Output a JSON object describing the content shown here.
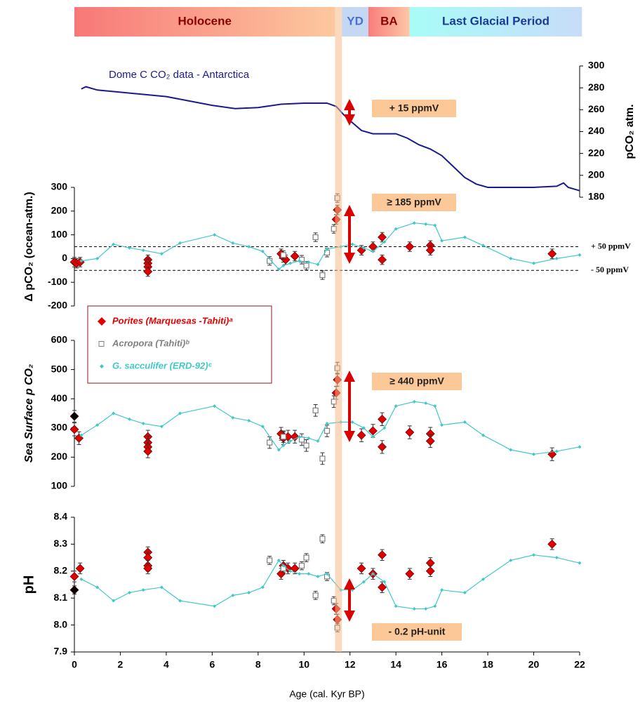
{
  "periods": [
    {
      "label": "Holocene",
      "start": 0,
      "end": 11.35,
      "colors": [
        "#f87878",
        "#fcc89e"
      ],
      "text_color": "#8b0000"
    },
    {
      "label": "YD",
      "start": 11.65,
      "end": 12.8,
      "colors": [
        "#c4d8f4",
        "#c4d8f4"
      ],
      "text_color": "#4a6fd0"
    },
    {
      "label": "BA",
      "start": 12.8,
      "end": 14.6,
      "colors": [
        "#f87c7c",
        "#fcc8a8"
      ],
      "text_color": "#8b0000"
    },
    {
      "label": "Last Glacial Period",
      "start": 14.6,
      "end": 22.1,
      "colors": [
        "#a8fcf8",
        "#c8dcf8"
      ],
      "text_color": "#1a3a9a"
    }
  ],
  "highlight": {
    "start": 11.35,
    "end": 11.65,
    "color": "#f5b98a"
  },
  "chart_data": [
    {
      "type": "line",
      "title": "Dome C CO₂ data - Antarctica",
      "ylabel": "pCO₂ atm.",
      "yaxis_side": "right",
      "xlim": [
        0,
        22
      ],
      "ylim": [
        180,
        300
      ],
      "yticks": [
        180,
        200,
        220,
        240,
        260,
        280,
        300
      ],
      "annotation": "+ 15 ppmV",
      "series": [
        {
          "color": "#1a1a8c",
          "marker": "line",
          "x": [
            0.3,
            0.5,
            1,
            2,
            3,
            4,
            5,
            6,
            7,
            8,
            9,
            10,
            11,
            11.4,
            11.7,
            12,
            12.5,
            13,
            14,
            14.5,
            15,
            15.5,
            16,
            16.5,
            17,
            17.5,
            18,
            19,
            20,
            21,
            21.3,
            21.5,
            22
          ],
          "values": [
            279,
            281,
            278,
            276,
            274,
            272,
            268,
            264,
            261,
            262,
            265,
            266,
            266,
            263,
            256,
            250,
            241,
            238,
            238,
            234,
            228,
            224,
            218,
            208,
            198,
            192,
            189,
            189,
            189,
            190,
            193,
            189,
            186
          ]
        }
      ]
    },
    {
      "type": "scatter",
      "ylabel": "Δ pCO₂ (ocean-atm.)",
      "yaxis_side": "left",
      "xlim": [
        0,
        22
      ],
      "ylim": [
        -200,
        300
      ],
      "yticks": [
        -200,
        -100,
        0,
        100,
        200,
        300
      ],
      "annotation": "≥ 185 ppmV",
      "reference_lines": [
        {
          "value": 50,
          "label": "+ 50 ppmV"
        },
        {
          "value": -50,
          "label": "- 50 ppmV"
        }
      ],
      "series": [
        {
          "color": "#e00000",
          "marker": "diamond",
          "x": [
            0,
            0.1,
            0.25,
            3.2,
            3.2,
            3.2,
            3.2,
            9.0,
            9.1,
            9.2,
            9.6,
            11.4,
            11.45,
            12.5,
            13.0,
            13.4,
            13.4,
            14.6,
            15.5,
            15.5,
            20.8
          ],
          "values": [
            -15,
            -20,
            -15,
            -5,
            -20,
            -35,
            -55,
            20,
            5,
            -5,
            10,
            165,
            205,
            35,
            50,
            90,
            -5,
            50,
            55,
            35,
            20
          ],
          "errors": [
            20,
            20,
            20,
            20,
            20,
            20,
            20,
            20,
            20,
            20,
            20,
            20,
            20,
            20,
            20,
            20,
            20,
            20,
            20,
            20,
            20
          ]
        },
        {
          "color": "#808080",
          "marker": "square",
          "x": [
            8.5,
            9.1,
            9.9,
            10.1,
            10.5,
            10.8,
            11.0,
            11.3,
            11.45
          ],
          "values": [
            -10,
            15,
            -5,
            -30,
            90,
            -70,
            25,
            125,
            255
          ],
          "errors": [
            18,
            18,
            18,
            18,
            18,
            18,
            18,
            18,
            18
          ]
        },
        {
          "color": "#40c8c8",
          "marker": "line",
          "x": [
            0.3,
            1.0,
            1.7,
            2.4,
            3.0,
            3.8,
            4.6,
            6.1,
            6.9,
            7.6,
            8.2,
            8.9,
            9.1,
            9.4,
            9.8,
            10.2,
            10.6,
            11.0,
            11.6,
            12.1,
            12.6,
            13.0,
            13.5,
            14.0,
            14.8,
            15.3,
            15.7,
            16.0,
            17.0,
            17.8,
            19.0,
            20.0,
            21.0,
            22.0
          ],
          "values": [
            -10,
            0,
            60,
            45,
            35,
            20,
            65,
            100,
            65,
            50,
            30,
            -45,
            -30,
            -20,
            -10,
            -15,
            -25,
            40,
            50,
            60,
            45,
            30,
            70,
            125,
            150,
            145,
            140,
            75,
            90,
            55,
            0,
            -20,
            0,
            15
          ]
        }
      ]
    },
    {
      "type": "scatter",
      "ylabel": "Sea Surface p CO₂",
      "yaxis_side": "left",
      "legend": "upper left",
      "xlim": [
        0,
        22
      ],
      "ylim": [
        100,
        600
      ],
      "yticks": [
        100,
        200,
        300,
        400,
        500,
        600
      ],
      "annotation": "≥ 440 ppmV",
      "series": [
        {
          "name": "Porites (Marquesas -Tahiti)ᵃ",
          "color": "#e00000",
          "marker": "diamond",
          "x": [
            0,
            0.2,
            3.2,
            3.2,
            3.2,
            3.2,
            9.0,
            9.1,
            9.3,
            9.6,
            11.4,
            11.45,
            12.5,
            13.0,
            13.4,
            13.4,
            14.6,
            15.5,
            15.5,
            20.8
          ],
          "values": [
            295,
            265,
            270,
            250,
            235,
            220,
            280,
            265,
            270,
            270,
            420,
            465,
            275,
            290,
            330,
            235,
            285,
            280,
            255,
            210
          ],
          "errors": [
            22,
            22,
            22,
            22,
            22,
            22,
            22,
            22,
            22,
            22,
            22,
            22,
            22,
            22,
            22,
            22,
            22,
            22,
            22,
            22
          ]
        },
        {
          "name": "Acropora (Tahiti)ᵇ",
          "color": "#808080",
          "marker": "square",
          "x": [
            8.5,
            9.1,
            9.9,
            10.1,
            10.5,
            10.8,
            11.0,
            11.3,
            11.45
          ],
          "values": [
            250,
            270,
            260,
            240,
            360,
            195,
            290,
            390,
            505
          ],
          "errors": [
            20,
            20,
            20,
            20,
            20,
            20,
            20,
            20,
            20
          ]
        },
        {
          "name": "G. sacculifer (ERD-92)ᶜ",
          "color": "#40c8c8",
          "marker": "line",
          "x": [
            0.3,
            1.0,
            1.7,
            2.4,
            3.0,
            3.8,
            4.6,
            6.1,
            6.9,
            7.6,
            8.2,
            8.9,
            9.1,
            9.4,
            9.8,
            10.2,
            10.6,
            11.0,
            11.6,
            12.1,
            12.6,
            13.0,
            13.5,
            14.0,
            14.8,
            15.3,
            15.7,
            16.0,
            17.0,
            17.8,
            19.0,
            20.0,
            21.0,
            22.0
          ],
          "values": [
            275,
            310,
            350,
            330,
            315,
            305,
            350,
            375,
            335,
            325,
            305,
            225,
            240,
            255,
            270,
            265,
            255,
            315,
            320,
            320,
            300,
            270,
            300,
            375,
            390,
            385,
            375,
            310,
            320,
            275,
            225,
            210,
            220,
            235
          ]
        },
        {
          "color": "#000000",
          "marker": "diamond",
          "x": [
            0
          ],
          "values": [
            340
          ],
          "errors": [
            20
          ]
        }
      ]
    },
    {
      "type": "scatter",
      "ylabel": "pH",
      "yaxis_side": "left",
      "xlim": [
        0,
        22
      ],
      "ylim": [
        7.9,
        8.4
      ],
      "yticks": [
        7.9,
        {
          "value": 8,
          "label": "8.0"
        },
        8.1,
        8.2,
        8.3,
        8.4
      ],
      "xticks": [
        0,
        2,
        4,
        6,
        8,
        10,
        12,
        14,
        16,
        18,
        20,
        22
      ],
      "xlabel": "Age (cal. Kyr BP)",
      "annotation": "- 0.2 pH-unit",
      "series": [
        {
          "color": "#e00000",
          "marker": "diamond",
          "x": [
            0,
            0.25,
            3.2,
            3.2,
            3.2,
            3.2,
            9.0,
            9.1,
            9.3,
            9.6,
            11.4,
            11.45,
            12.5,
            13.0,
            13.4,
            13.4,
            14.6,
            15.5,
            15.5,
            20.8
          ],
          "values": [
            8.18,
            8.21,
            8.27,
            8.25,
            8.22,
            8.21,
            8.19,
            8.22,
            8.21,
            8.21,
            8.06,
            8.02,
            8.21,
            8.19,
            8.26,
            8.14,
            8.19,
            8.23,
            8.2,
            8.3
          ],
          "errors": [
            0.02,
            0.02,
            0.02,
            0.02,
            0.02,
            0.02,
            0.02,
            0.02,
            0.02,
            0.02,
            0.02,
            0.02,
            0.02,
            0.02,
            0.02,
            0.02,
            0.02,
            0.02,
            0.02,
            0.02
          ]
        },
        {
          "color": "#808080",
          "marker": "square",
          "x": [
            8.5,
            9.1,
            9.9,
            10.1,
            10.5,
            10.8,
            11.0,
            11.3,
            11.45
          ],
          "values": [
            8.24,
            8.21,
            8.22,
            8.25,
            8.11,
            8.32,
            8.18,
            8.09,
            7.99
          ],
          "errors": [
            0.015,
            0.015,
            0.015,
            0.015,
            0.015,
            0.015,
            0.015,
            0.015,
            0.015
          ]
        },
        {
          "color": "#40c8c8",
          "marker": "line",
          "x": [
            0.3,
            1.0,
            1.7,
            2.4,
            3.0,
            3.8,
            4.6,
            6.1,
            6.9,
            7.6,
            8.2,
            8.9,
            9.1,
            9.4,
            9.8,
            10.2,
            10.6,
            11.0,
            11.6,
            12.1,
            12.6,
            13.0,
            13.5,
            14.0,
            14.8,
            15.3,
            15.7,
            16.0,
            17.0,
            17.8,
            19.0,
            20.0,
            21.0,
            22.0
          ],
          "values": [
            8.17,
            8.14,
            8.09,
            8.12,
            8.13,
            8.14,
            8.09,
            8.07,
            8.11,
            8.12,
            8.14,
            8.24,
            8.22,
            8.2,
            8.19,
            8.19,
            8.18,
            8.19,
            8.13,
            8.13,
            8.16,
            8.19,
            8.16,
            8.07,
            8.06,
            8.06,
            8.07,
            8.13,
            8.12,
            8.17,
            8.24,
            8.26,
            8.25,
            8.23
          ]
        },
        {
          "color": "#000000",
          "marker": "diamond",
          "x": [
            0
          ],
          "values": [
            8.13
          ],
          "errors": [
            0.015
          ]
        }
      ]
    }
  ]
}
